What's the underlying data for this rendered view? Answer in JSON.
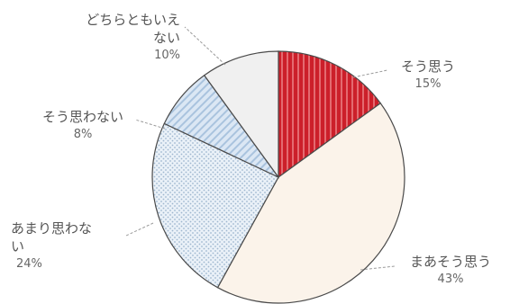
{
  "chart_data": {
    "type": "pie",
    "start_angle_deg": 0,
    "direction": "clockwise",
    "slices": [
      {
        "label": "そう思う",
        "value": 15,
        "value_label": "15%",
        "color": "#cc1f2a",
        "pattern": "red-stripes"
      },
      {
        "label": "まあそう思う",
        "value": 43,
        "value_label": "43%",
        "color": "#fbf3ea",
        "pattern": "none"
      },
      {
        "label": "あまり思わない",
        "value": 24,
        "value_label": "24%",
        "color": "#dce8f3",
        "pattern": "dots"
      },
      {
        "label": "そう思わない",
        "value": 8,
        "value_label": "8%",
        "color": "#c6dbef",
        "pattern": "diagonal"
      },
      {
        "label": "どちらともいえない",
        "value": 10,
        "value_label": "10%",
        "color": "#f0f0f0",
        "pattern": "none"
      }
    ]
  },
  "labels": {
    "sou_omou": {
      "line1": "そう思う",
      "pct": "15%"
    },
    "maa_sou_omou": {
      "line1": "まあそう思う",
      "pct": "43%"
    },
    "amari": {
      "line1": "あまり思わな",
      "line2": "い",
      "pct": "24%"
    },
    "sou_omowanai": {
      "line1": "そう思わない",
      "pct": "8%"
    },
    "dochira": {
      "line1": "どちらともいえ",
      "line2": "ない",
      "pct": "10%"
    }
  }
}
